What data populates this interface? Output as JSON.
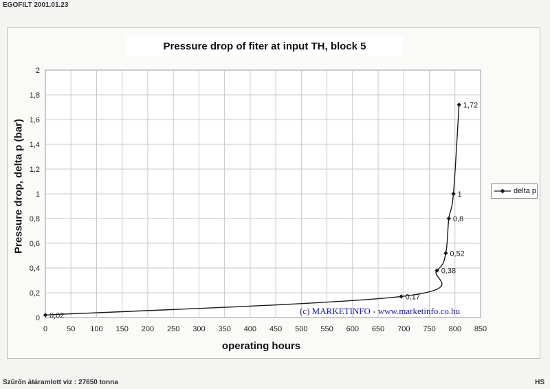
{
  "header": {
    "left_text": "EGOFILT  2001.01.23"
  },
  "footer": {
    "left_text": "Szűrőn átáramlott viz : 27650 tonna",
    "right_text": "HS"
  },
  "watermark": "(c) MARKETINFO - www.marketinfo.co.hu",
  "colors": {
    "line": "#1a1a1a",
    "grid": "#c8c8c8",
    "watermark": "#1a1aa8",
    "title_box": "#ffffff"
  },
  "chart_data": {
    "type": "line",
    "title": "Pressure drop of fiter at input TH, block 5",
    "xlabel": "operating  hours",
    "ylabel": "Pressure drop, delta p   (bar)",
    "xlim": [
      0,
      850
    ],
    "ylim": [
      0,
      2
    ],
    "x_ticks": [
      "0",
      "50",
      "100",
      "150",
      "200",
      "250",
      "300",
      "350",
      "400",
      "450",
      "500",
      "550",
      "600",
      "650",
      "700",
      "750",
      "800",
      "850"
    ],
    "y_ticks": [
      "0",
      "0,2",
      "0,4",
      "0,6",
      "0,8",
      "1",
      "1,2",
      "1,4",
      "1,6",
      "1,8",
      "2"
    ],
    "grid": true,
    "legend_position": "right",
    "series": [
      {
        "name": "delta p",
        "points": [
          {
            "x": 0,
            "y": 0.02,
            "label": "0,02"
          },
          {
            "x": 695,
            "y": 0.17,
            "label": "0,17"
          },
          {
            "x": 765,
            "y": 0.38,
            "label": "0,38"
          },
          {
            "x": 782,
            "y": 0.52,
            "label": "0,52"
          },
          {
            "x": 788,
            "y": 0.8,
            "label": "0,8"
          },
          {
            "x": 797,
            "y": 1.0,
            "label": "1"
          },
          {
            "x": 808,
            "y": 1.72,
            "label": "1,72"
          }
        ]
      }
    ]
  }
}
